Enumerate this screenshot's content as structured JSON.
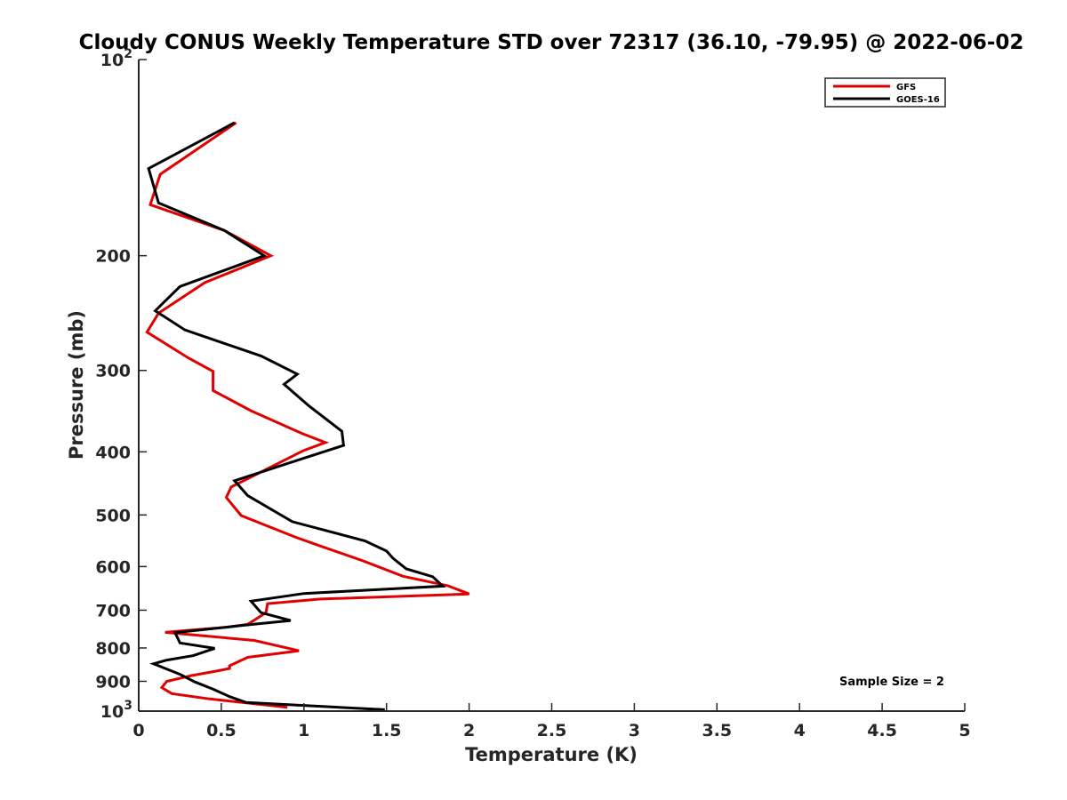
{
  "chart_data": {
    "type": "line",
    "title": "Cloudy CONUS Weekly Temperature STD over 72317 (36.10, -79.95) @ 2022-06-02",
    "xlabel": "Temperature (K)",
    "ylabel": "Pressure (mb)",
    "xlim": [
      0,
      5
    ],
    "ylim": [
      100,
      1000
    ],
    "y_scale": "log",
    "y_reversed": true,
    "grid": false,
    "legend_position": "top-right",
    "x_ticks": [
      0,
      0.5,
      1,
      1.5,
      2,
      2.5,
      3,
      3.5,
      4,
      4.5,
      5
    ],
    "x_tick_labels": [
      "0",
      "0.5",
      "1",
      "1.5",
      "2",
      "2.5",
      "3",
      "3.5",
      "4",
      "4.5",
      "5"
    ],
    "y_ticks": [
      {
        "value": 100,
        "label": "10",
        "sup": "2"
      },
      {
        "value": 200,
        "label": "200",
        "sup": ""
      },
      {
        "value": 300,
        "label": "300",
        "sup": ""
      },
      {
        "value": 400,
        "label": "400",
        "sup": ""
      },
      {
        "value": 500,
        "label": "500",
        "sup": ""
      },
      {
        "value": 600,
        "label": "600",
        "sup": ""
      },
      {
        "value": 700,
        "label": "700",
        "sup": ""
      },
      {
        "value": 800,
        "label": "800",
        "sup": ""
      },
      {
        "value": 900,
        "label": "900",
        "sup": ""
      },
      {
        "value": 1000,
        "label": "10",
        "sup": "3"
      }
    ],
    "annotation": "Sample Size = 2",
    "series": [
      {
        "name": "GFS",
        "color": "#e00000",
        "points": [
          [
            0.59,
            125
          ],
          [
            0.13,
            150
          ],
          [
            0.07,
            167
          ],
          [
            0.52,
            183
          ],
          [
            0.8,
            200
          ],
          [
            0.4,
            220
          ],
          [
            0.12,
            245
          ],
          [
            0.05,
            262
          ],
          [
            0.3,
            287
          ],
          [
            0.45,
            301
          ],
          [
            0.45,
            322
          ],
          [
            0.68,
            346
          ],
          [
            0.99,
            375
          ],
          [
            1.13,
            387
          ],
          [
            1.0,
            398
          ],
          [
            0.56,
            453
          ],
          [
            0.53,
            470
          ],
          [
            0.62,
            501
          ],
          [
            0.95,
            541
          ],
          [
            1.1,
            558
          ],
          [
            1.35,
            587
          ],
          [
            1.6,
            621
          ],
          [
            1.87,
            642
          ],
          [
            2.0,
            661
          ],
          [
            1.1,
            673
          ],
          [
            0.78,
            684
          ],
          [
            0.77,
            706
          ],
          [
            0.66,
            736
          ],
          [
            0.52,
            744
          ],
          [
            0.29,
            752
          ],
          [
            0.16,
            757
          ],
          [
            0.7,
            779
          ],
          [
            0.97,
            808
          ],
          [
            0.66,
            827
          ],
          [
            0.55,
            852
          ],
          [
            0.55,
            860
          ],
          [
            0.48,
            867
          ],
          [
            0.32,
            882
          ],
          [
            0.17,
            900
          ],
          [
            0.14,
            920
          ],
          [
            0.2,
            940
          ],
          [
            0.43,
            958
          ],
          [
            0.9,
            987
          ]
        ]
      },
      {
        "name": "GOES-16",
        "color": "#000000",
        "points": [
          [
            0.58,
            125
          ],
          [
            0.06,
            147
          ],
          [
            0.12,
            166
          ],
          [
            0.52,
            183
          ],
          [
            0.76,
            200
          ],
          [
            0.25,
            223
          ],
          [
            0.1,
            243
          ],
          [
            0.28,
            260
          ],
          [
            0.74,
            285
          ],
          [
            0.96,
            304
          ],
          [
            0.88,
            315
          ],
          [
            1.03,
            340
          ],
          [
            1.23,
            372
          ],
          [
            1.24,
            391
          ],
          [
            1.0,
            409
          ],
          [
            0.58,
            443
          ],
          [
            0.66,
            467
          ],
          [
            0.93,
            512
          ],
          [
            1.37,
            548
          ],
          [
            1.5,
            568
          ],
          [
            1.54,
            583
          ],
          [
            1.62,
            605
          ],
          [
            1.78,
            622
          ],
          [
            1.84,
            643
          ],
          [
            1.0,
            660
          ],
          [
            0.68,
            678
          ],
          [
            0.74,
            706
          ],
          [
            0.92,
            726
          ],
          [
            0.69,
            736
          ],
          [
            0.22,
            758
          ],
          [
            0.25,
            786
          ],
          [
            0.46,
            801
          ],
          [
            0.33,
            822
          ],
          [
            0.17,
            835
          ],
          [
            0.09,
            846
          ],
          [
            0.25,
            878
          ],
          [
            0.34,
            902
          ],
          [
            0.45,
            925
          ],
          [
            0.55,
            950
          ],
          [
            0.65,
            970
          ],
          [
            1.49,
            995
          ]
        ]
      }
    ]
  }
}
